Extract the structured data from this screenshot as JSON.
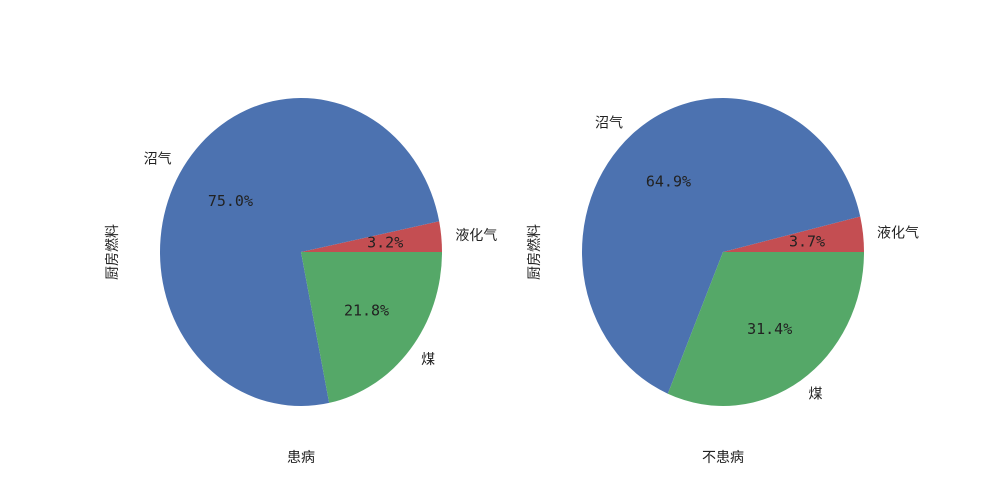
{
  "chart_data": [
    {
      "type": "pie",
      "xlabel": "患病",
      "ylabel": "厨房燃料",
      "labels": [
        "液化气",
        "沼气",
        "煤"
      ],
      "values": [
        3.2,
        75.0,
        21.8
      ],
      "colors": [
        "#c44e52",
        "#4c72b0",
        "#55a868"
      ],
      "value_labels": [
        "3.2%",
        "75.0%",
        "21.8%"
      ]
    },
    {
      "type": "pie",
      "xlabel": "不患病",
      "ylabel": "厨房燃料",
      "labels": [
        "液化气",
        "沼气",
        "煤"
      ],
      "values": [
        3.7,
        64.9,
        31.4
      ],
      "colors": [
        "#c44e52",
        "#4c72b0",
        "#55a868"
      ],
      "value_labels": [
        "3.7%",
        "64.9%",
        "31.4%"
      ]
    }
  ]
}
